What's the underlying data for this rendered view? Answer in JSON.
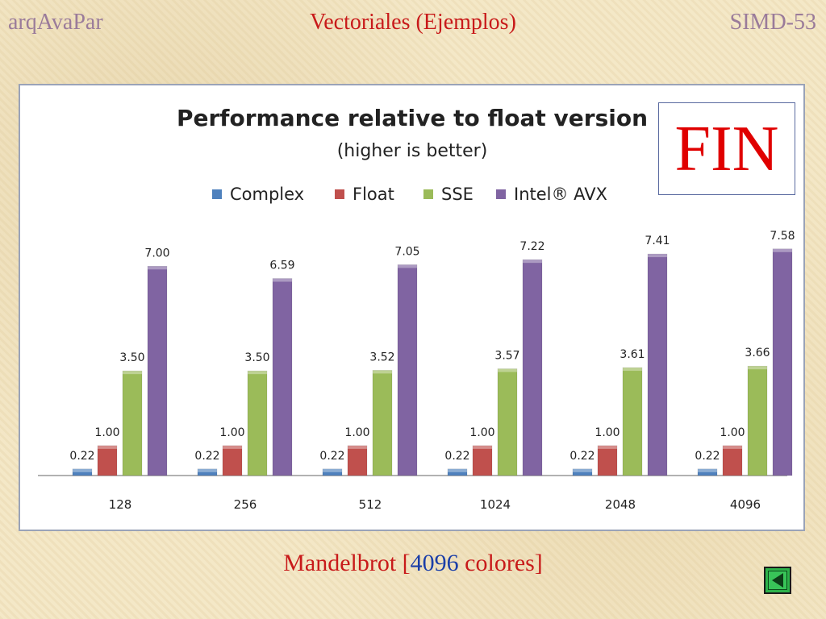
{
  "header": {
    "left": "arqAvaPar",
    "center": "Vectoriales (Ejemplos)",
    "right": "SIMD-53"
  },
  "fin_label": "FIN",
  "caption": {
    "prefix": "Mandelbrot [",
    "number": "4096",
    "suffix": " colores]"
  },
  "nav": {
    "back_icon": "back-triangle-icon"
  },
  "chart_data": {
    "type": "bar",
    "title": "Performance relative to float version",
    "subtitle": "(higher is better)",
    "xlabel": "",
    "ylabel": "",
    "ylim": [
      0,
      8.5
    ],
    "grid": false,
    "legend_position": "top",
    "categories": [
      "128",
      "256",
      "512",
      "1024",
      "2048",
      "4096"
    ],
    "series": [
      {
        "name": "Complex",
        "color": "#4f81bd",
        "values": [
          0.22,
          0.22,
          0.22,
          0.22,
          0.22,
          0.22
        ],
        "labels": [
          "0.22",
          "0.22",
          "0.22",
          "0.22",
          "0.22",
          "0.22"
        ]
      },
      {
        "name": "Float",
        "color": "#c0504d",
        "values": [
          1.0,
          1.0,
          1.0,
          1.0,
          1.0,
          1.0
        ],
        "labels": [
          "1.00",
          "1.00",
          "1.00",
          "1.00",
          "1.00",
          "1.00"
        ]
      },
      {
        "name": "SSE",
        "color": "#9bbb59",
        "values": [
          3.5,
          3.5,
          3.52,
          3.57,
          3.61,
          3.66
        ],
        "labels": [
          "3.50",
          "3.50",
          "3.52",
          "3.57",
          "3.61",
          "3.66"
        ]
      },
      {
        "name": "Intel® AVX",
        "color": "#8064a2",
        "values": [
          7.0,
          6.59,
          7.05,
          7.22,
          7.41,
          7.58
        ],
        "labels": [
          "7.00",
          "6.59",
          "7.05",
          "7.22",
          "7.41",
          "7.58"
        ]
      }
    ]
  }
}
